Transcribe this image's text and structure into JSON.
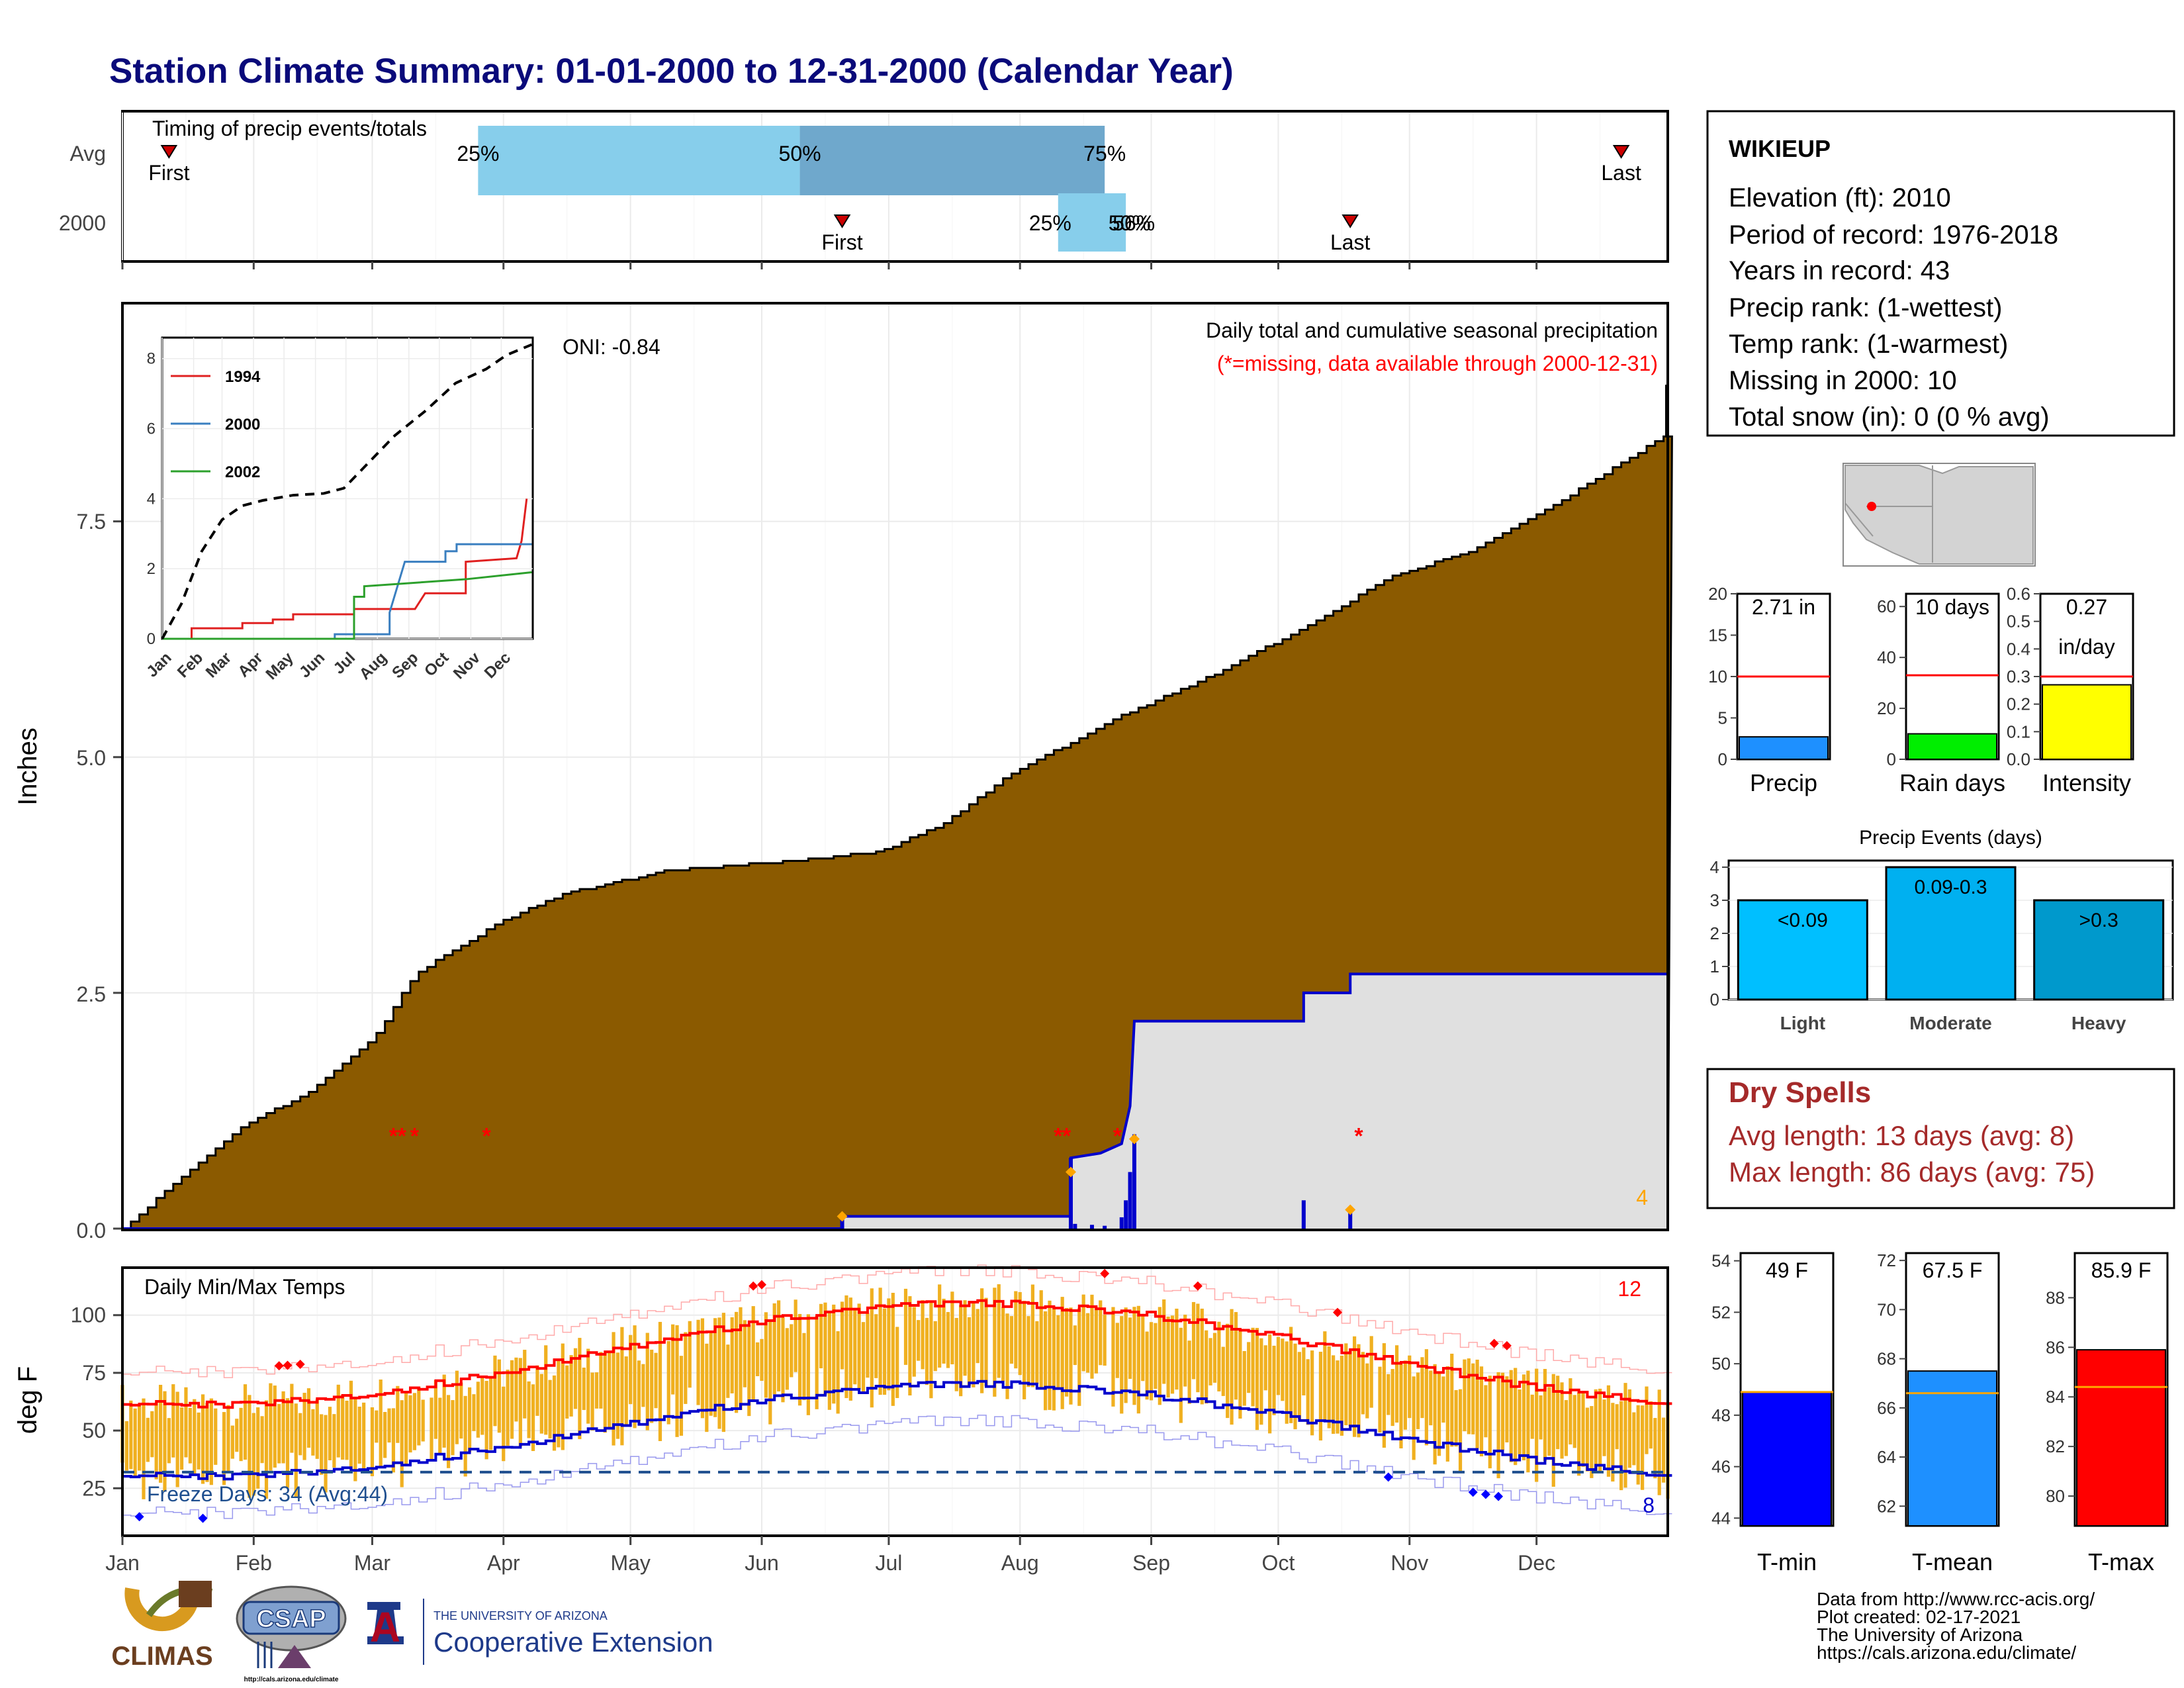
{
  "title": "Station Climate Summary: 01-01-2000 to 12-31-2000 (Calendar Year)",
  "colors": {
    "title": "#0a0a7a",
    "cumulative_2000": "#8b5a00",
    "avg_cumulative": "#e0e0e0",
    "avg_line": "#0000cc",
    "timing_light": "#87ceeb",
    "timing_dark": "#6fa8cc",
    "missing": "#ff0000",
    "tmax_line": "#ff0000",
    "tmin_line": "#0000cc",
    "temp_bar": "#f0b020",
    "dry_spell_text": "#a52a2a"
  },
  "timing": {
    "label": "Timing of precip events/totals",
    "rows": [
      "Avg",
      "2000"
    ],
    "avg": {
      "first_doy": 12,
      "last_doy": 355,
      "q25_doy": 85,
      "q50_doy": 161,
      "q75_doy": 233
    },
    "y2000": {
      "first_doy": 171,
      "last_doy": 291,
      "q25_doy": 222,
      "q50_doy": 237,
      "q75_doy": 238
    },
    "labels": {
      "q25": "25%",
      "q50": "50%",
      "q75": "75%",
      "first": "First",
      "last": "Last",
      "y2000_overlap": "56%"
    }
  },
  "months": [
    "Jan",
    "Feb",
    "Mar",
    "Apr",
    "May",
    "Jun",
    "Jul",
    "Aug",
    "Sep",
    "Oct",
    "Nov",
    "Dec"
  ],
  "precip": {
    "ylabel": "Inches",
    "yticks": [
      "0.0",
      "2.5",
      "5.0",
      "7.5"
    ],
    "ylim": [
      0,
      9.8
    ],
    "oni": "ONI: -0.84",
    "title": "Daily total and cumulative seasonal precipitation",
    "subtitle": "(*=missing, data available through 2000-12-31)",
    "count_label": "4",
    "avg_cumulative": [
      [
        1,
        0
      ],
      [
        15,
        0.55
      ],
      [
        30,
        1.1
      ],
      [
        45,
        1.45
      ],
      [
        60,
        2.0
      ],
      [
        70,
        2.7
      ],
      [
        90,
        3.25
      ],
      [
        105,
        3.55
      ],
      [
        130,
        3.8
      ],
      [
        160,
        3.9
      ],
      [
        180,
        4.0
      ],
      [
        195,
        4.3
      ],
      [
        210,
        4.8
      ],
      [
        235,
        5.4
      ],
      [
        260,
        5.9
      ],
      [
        285,
        6.5
      ],
      [
        300,
        6.9
      ],
      [
        320,
        7.2
      ],
      [
        340,
        7.7
      ],
      [
        365,
        8.4
      ]
    ],
    "cumulative_2000": [
      [
        1,
        0
      ],
      [
        171,
        0
      ],
      [
        171,
        0.13
      ],
      [
        225,
        0.13
      ],
      [
        225,
        0.75
      ],
      [
        232,
        0.8
      ],
      [
        237,
        0.9
      ],
      [
        239,
        1.3
      ],
      [
        240,
        2.2
      ],
      [
        280,
        2.2
      ],
      [
        280,
        2.5
      ],
      [
        291,
        2.5
      ],
      [
        291,
        2.7
      ],
      [
        366,
        2.7
      ]
    ],
    "daily_bars": [
      [
        171,
        0.13
      ],
      [
        225,
        0.75
      ],
      [
        226,
        0.05
      ],
      [
        230,
        0.04
      ],
      [
        233,
        0.03
      ],
      [
        237,
        0.12
      ],
      [
        238,
        0.3
      ],
      [
        239,
        0.6
      ],
      [
        240,
        1.0
      ],
      [
        280,
        0.3
      ],
      [
        291,
        0.2
      ]
    ],
    "missing_marks": [
      [
        65,
        1.0
      ],
      [
        67,
        1.0
      ],
      [
        70,
        1.0
      ],
      [
        87,
        1.0
      ],
      [
        222,
        1.0
      ],
      [
        224,
        1.0
      ],
      [
        236,
        1.0
      ],
      [
        293,
        1.0
      ]
    ],
    "event_marks": [
      [
        171,
        0.13
      ],
      [
        225,
        0.6
      ],
      [
        240,
        0.95
      ],
      [
        291,
        0.2
      ]
    ]
  },
  "inset": {
    "yticks": [
      "0",
      "2",
      "4",
      "6",
      "8"
    ],
    "months": [
      "Jan",
      "Feb",
      "Mar",
      "Apr",
      "May",
      "Jun",
      "Jul",
      "Aug",
      "Sep",
      "Oct",
      "Nov",
      "Dec"
    ],
    "series": [
      {
        "name": "1994",
        "color": "#e02020",
        "values": [
          [
            1,
            0
          ],
          [
            30,
            0
          ],
          [
            30,
            0.3
          ],
          [
            80,
            0.3
          ],
          [
            80,
            0.45
          ],
          [
            110,
            0.45
          ],
          [
            110,
            0.55
          ],
          [
            130,
            0.55
          ],
          [
            130,
            0.7
          ],
          [
            190,
            0.7
          ],
          [
            190,
            0.85
          ],
          [
            250,
            0.85
          ],
          [
            260,
            1.3
          ],
          [
            300,
            1.3
          ],
          [
            300,
            2.2
          ],
          [
            350,
            2.3
          ],
          [
            355,
            2.8
          ],
          [
            360,
            4.0
          ]
        ]
      },
      {
        "name": "2000",
        "color": "#3a7fc0",
        "values": [
          [
            1,
            0
          ],
          [
            171,
            0
          ],
          [
            171,
            0.13
          ],
          [
            225,
            0.13
          ],
          [
            225,
            0.75
          ],
          [
            240,
            2.2
          ],
          [
            280,
            2.2
          ],
          [
            280,
            2.5
          ],
          [
            291,
            2.5
          ],
          [
            291,
            2.7
          ],
          [
            365,
            2.7
          ]
        ]
      },
      {
        "name": "2002",
        "color": "#2ca02c",
        "values": [
          [
            1,
            0
          ],
          [
            190,
            0
          ],
          [
            190,
            1.2
          ],
          [
            200,
            1.2
          ],
          [
            200,
            1.5
          ],
          [
            250,
            1.6
          ],
          [
            300,
            1.7
          ],
          [
            365,
            1.9
          ]
        ]
      }
    ],
    "avg_dashed": [
      [
        1,
        0
      ],
      [
        20,
        1.0
      ],
      [
        40,
        2.5
      ],
      [
        60,
        3.4
      ],
      [
        80,
        3.8
      ],
      [
        100,
        3.95
      ],
      [
        130,
        4.1
      ],
      [
        160,
        4.15
      ],
      [
        180,
        4.3
      ],
      [
        200,
        4.9
      ],
      [
        230,
        5.8
      ],
      [
        260,
        6.5
      ],
      [
        290,
        7.3
      ],
      [
        320,
        7.7
      ],
      [
        340,
        8.1
      ],
      [
        365,
        8.4
      ]
    ]
  },
  "temps": {
    "ylabel": "deg F",
    "title": "Daily Min/Max Temps",
    "yticks": [
      "25",
      "50",
      "75",
      "100"
    ],
    "ylim": [
      5,
      120
    ],
    "freeze_label": "Freeze Days: 34 (Avg:44)",
    "freeze_line": 32,
    "count_max": "12",
    "count_min": "8"
  },
  "station": {
    "name": "WIKIEUP",
    "lines": [
      "Elevation (ft): 2010",
      "Period of record: 1976-2018",
      "Years in record: 43",
      "Precip rank:  (1-wettest)",
      "Temp rank:  (1-warmest)",
      "Missing in 2000: 10",
      "Total snow (in): 0 (0 % avg)"
    ]
  },
  "summary_bars": [
    {
      "label": "Precip",
      "value_text": "2.71 in",
      "value": 2.71,
      "avg": 10,
      "ylim": [
        0,
        20
      ],
      "yticks": [
        "0",
        "5",
        "10",
        "15",
        "20"
      ],
      "color": "#1e90ff"
    },
    {
      "label": "Rain days",
      "value_text": "10 days",
      "value": 10,
      "avg": 33,
      "ylim": [
        0,
        65
      ],
      "yticks": [
        "0",
        "20",
        "40",
        "60"
      ],
      "color": "#00ee00"
    },
    {
      "label": "Intensity",
      "value_text": "0.27",
      "value_text2": "in/day",
      "value": 0.27,
      "avg": 0.3,
      "ylim": [
        0,
        0.6
      ],
      "yticks": [
        "0.0",
        "0.1",
        "0.2",
        "0.3",
        "0.4",
        "0.5",
        "0.6"
      ],
      "color": "#ffff00"
    }
  ],
  "events": {
    "title": "Precip Events (days)",
    "yticks": [
      "0",
      "1",
      "2",
      "3",
      "4"
    ],
    "categories": [
      "Light",
      "Moderate",
      "Heavy"
    ],
    "values": [
      3,
      4,
      3
    ],
    "bar_labels": [
      "<0.09",
      "0.09-0.3",
      ">0.3"
    ],
    "colors": [
      "#00bfff",
      "#00b0f0",
      "#0099cc"
    ]
  },
  "dry_spells": {
    "title": "Dry Spells",
    "avg": "Avg length: 13 days (avg: 8)",
    "max": "Max length: 86 days (avg: 75)"
  },
  "temp_bars": [
    {
      "label": "T-min",
      "value_text": "49 F",
      "value": 48.9,
      "avg": 48.9,
      "ylim": [
        43.7,
        54.3
      ],
      "yticks": [
        "44",
        "46",
        "48",
        "50",
        "52",
        "54"
      ],
      "color": "#0000ff"
    },
    {
      "label": "T-mean",
      "value_text": "67.5 F",
      "value": 67.5,
      "avg": 66.6,
      "ylim": [
        61.2,
        72.3
      ],
      "yticks": [
        "62",
        "64",
        "66",
        "68",
        "70",
        "72"
      ],
      "color": "#1e90ff"
    },
    {
      "label": "T-max",
      "value_text": "85.9 F",
      "value": 85.9,
      "avg": 84.4,
      "ylim": [
        78.8,
        89.8
      ],
      "yticks": [
        "80",
        "82",
        "84",
        "86",
        "88"
      ],
      "color": "#ff0000"
    }
  ],
  "credits": [
    "Data from http://www.rcc-acis.org/",
    "Plot created: 02-17-2021",
    "The University of Arizona",
    "https://cals.arizona.edu/climate/"
  ],
  "logos": {
    "climas": "CLIMAS",
    "csap": "CSAP",
    "csap_url": "http://cals.arizona.edu/climate",
    "ua_small": "THE UNIVERSITY OF ARIZONA",
    "ua_big": "Cooperative Extension",
    "ua_mark": "A"
  }
}
